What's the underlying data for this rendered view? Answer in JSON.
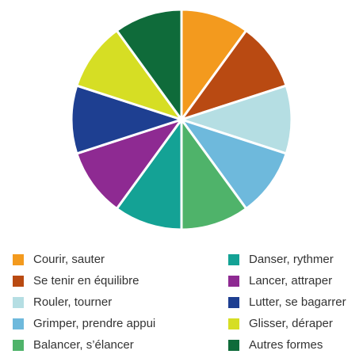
{
  "chart_data": {
    "type": "pie",
    "categories": [
      "Courir, sauter",
      "Se tenir en équilibre",
      "Rouler, tourner",
      "Grimper, prendre appui",
      "Balancer, s’élancer",
      "Danser, rythmer",
      "Lancer, attraper",
      "Lutter, se bagarrer",
      "Glisser, déraper",
      "Autres formes"
    ],
    "values": [
      10,
      10,
      10,
      10,
      10,
      10,
      10,
      10,
      10,
      10
    ],
    "colors": [
      "#F39A1E",
      "#B94A12",
      "#B5DEE3",
      "#6EB9DC",
      "#4FB36A",
      "#14A295",
      "#8E2A92",
      "#1E3F91",
      "#D6DE24",
      "#0F6B3A"
    ],
    "start": "12 o'clock",
    "direction": "clockwise",
    "legend": "bottom, two columns",
    "title": ""
  }
}
